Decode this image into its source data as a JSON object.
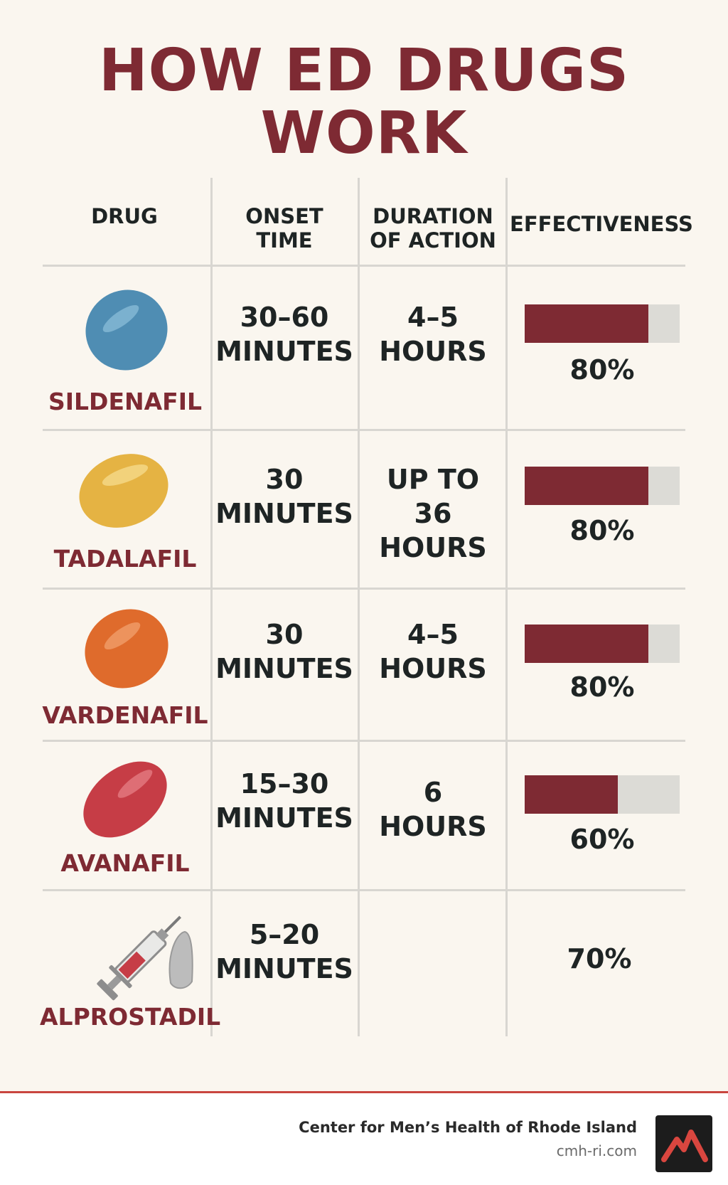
{
  "title": "HOW ED DRUGS WORK",
  "headers": {
    "drug": "DRUG",
    "onset_line1": "ONSET",
    "onset_line2": "TIME",
    "duration_line1": "DURATION",
    "duration_line2": "OF ACTION",
    "effectiveness": "EFFECTIVENESS"
  },
  "rows": [
    {
      "name": "SILDENAFIL",
      "onset1": "30–60",
      "onset2": "MINUTES",
      "duration1": "4–5",
      "duration2": "HOURS",
      "effectiveness": 0.8,
      "effectiveness_label": "80%",
      "pill_color": "#4f8db3",
      "icon": "blue-pill-icon"
    },
    {
      "name": "TADALAFIL",
      "onset1": "30",
      "onset2": "MINUTES",
      "duration1": "UP TO",
      "duration2": "36 HOURS",
      "effectiveness": 0.8,
      "effectiveness_label": "80%",
      "pill_color": "#e5b343",
      "icon": "yellow-pill-icon"
    },
    {
      "name": "VARDENAFIL",
      "onset1": "30",
      "onset2": "MINUTES",
      "duration1": "4–5",
      "duration2": "HOURS",
      "effectiveness": 0.8,
      "effectiveness_label": "80%",
      "pill_color": "#df6b2c",
      "icon": "orange-pill-icon"
    },
    {
      "name": "AVANAFIL",
      "onset1": "15–30",
      "onset2": "MINUTES",
      "duration1": "6",
      "duration2": "HOURS",
      "effectiveness": 0.6,
      "effectiveness_label": "60%",
      "pill_color": "#c63d46",
      "icon": "red-pill-icon"
    },
    {
      "name": "ALPROSTADIL",
      "onset1": "5–20",
      "onset2": "MINUTES",
      "duration1": "",
      "duration2": "",
      "effectiveness": 0.7,
      "effectiveness_label": "70%",
      "pill_color": "#c9c9c9",
      "icon": "syringe-icon"
    }
  ],
  "footer": {
    "org": "Center for Men’s Health of Rhode Island",
    "url": "cmh-ri.com",
    "logo_icon": "mountain-logo-icon"
  },
  "colors": {
    "accent": "#7e2a33",
    "bar_track": "#dcdbd6",
    "footer_line": "#c9453f"
  }
}
